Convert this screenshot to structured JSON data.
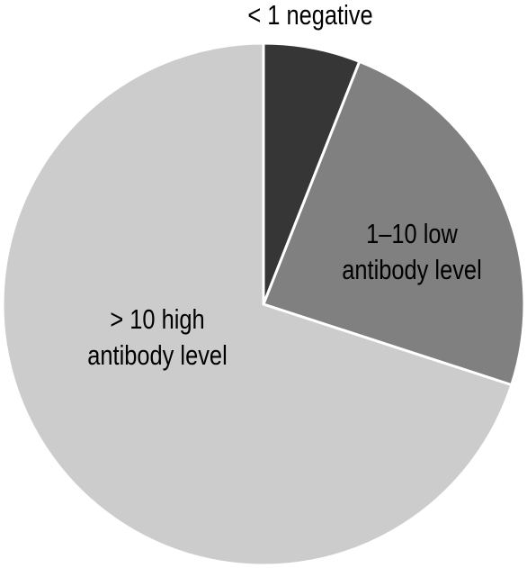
{
  "chart_data": {
    "type": "pie",
    "categories": [
      "< 1 negative",
      "1–10 low antibody level",
      "> 10 high antibody level"
    ],
    "values": [
      6,
      24,
      70
    ],
    "colors": [
      "#363636",
      "#808080",
      "#cccccc"
    ]
  }
}
